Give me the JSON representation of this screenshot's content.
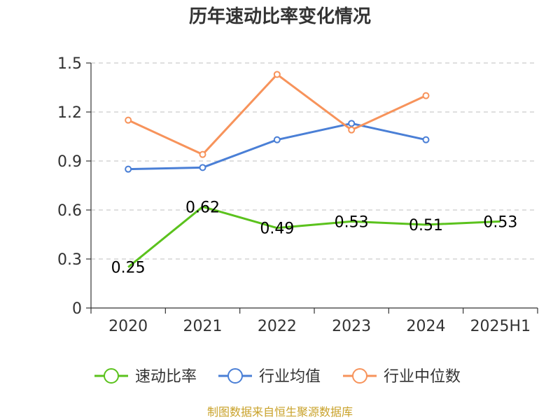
{
  "chart_data": {
    "type": "line",
    "title": "历年速动比率变化情况",
    "categories": [
      "2020",
      "2021",
      "2022",
      "2023",
      "2024",
      "2025H1"
    ],
    "ylim": [
      0,
      1.5
    ],
    "yticks": [
      "0",
      "0.3",
      "0.6",
      "0.9",
      "1.2",
      "1.5"
    ],
    "grid": true,
    "legend_position": "bottom",
    "series": [
      {
        "name": "速动比率",
        "color": "#5bc21d",
        "values": [
          0.25,
          0.62,
          0.49,
          0.53,
          0.51,
          0.53
        ],
        "labels": [
          "0.25",
          "0.62",
          "0.49",
          "0.53",
          "0.51",
          "0.53"
        ],
        "markers": false
      },
      {
        "name": "行业均值",
        "color": "#4a7fd6",
        "values": [
          0.85,
          0.86,
          1.03,
          1.13,
          1.03,
          null
        ],
        "markers": true
      },
      {
        "name": "行业中位数",
        "color": "#f7935b",
        "values": [
          1.15,
          0.94,
          1.43,
          1.09,
          1.3,
          null
        ],
        "markers": true
      }
    ]
  },
  "footer": "制图数据来自恒生聚源数据库"
}
